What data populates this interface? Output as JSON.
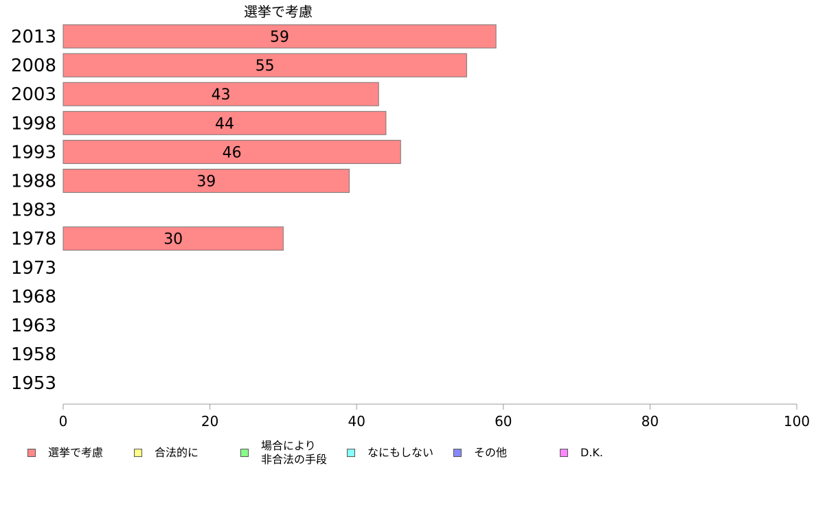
{
  "chart_data": {
    "type": "bar",
    "orientation": "horizontal",
    "title": "選挙で考慮",
    "categories": [
      "2013",
      "2008",
      "2003",
      "1998",
      "1993",
      "1988",
      "1983",
      "1978",
      "1973",
      "1968",
      "1963",
      "1958",
      "1953"
    ],
    "series": [
      {
        "name": "選挙で考慮",
        "color": "#ff8888",
        "values": [
          59,
          55,
          43,
          44,
          46,
          39,
          null,
          30,
          null,
          null,
          null,
          null,
          null
        ],
        "labels": [
          "59",
          "55",
          "43",
          "44",
          "46",
          "39",
          "",
          "30",
          "",
          "",
          "",
          "",
          ""
        ]
      }
    ],
    "xlim": [
      0,
      100
    ],
    "xticks": [
      "0",
      "20",
      "40",
      "60",
      "80",
      "100"
    ],
    "grid": false,
    "legend_position": "bottom"
  },
  "legend": [
    {
      "label": "選挙で考慮",
      "color": "#ff8888"
    },
    {
      "label": "合法的に",
      "color": "#ffff88"
    },
    {
      "label": "場合により\n非合法の手段",
      "color": "#88ff88"
    },
    {
      "label": "なにもしない",
      "color": "#88ffff"
    },
    {
      "label": "その他",
      "color": "#8888ff"
    },
    {
      "label": "D.K.",
      "color": "#ff88ff"
    }
  ]
}
